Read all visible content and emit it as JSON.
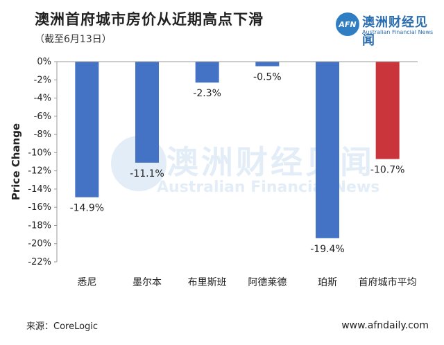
{
  "logo": {
    "mark": "AFN",
    "name_cn": "澳洲财经见闻",
    "name_en": "Australian Financial News"
  },
  "source": "来源：CoreLogic",
  "site": "www.afndaily.com",
  "colors": {
    "bar_default": "#4472c4",
    "bar_highlight": "#c9353a",
    "accent": "#2f7ec3"
  },
  "chart_data": {
    "type": "bar",
    "title": "澳洲首府城市房价从近期高点下滑",
    "subtitle": "（截至6月13日）",
    "ylabel": "Price Change",
    "xlabel": "",
    "ylim": [
      -22,
      0
    ],
    "yticks": [
      "0%",
      "-2%",
      "-4%",
      "-6%",
      "-8%",
      "-10%",
      "-12%",
      "-14%",
      "-16%",
      "-18%",
      "-20%",
      "-22%"
    ],
    "categories": [
      "悉尼",
      "墨尔本",
      "布里斯班",
      "阿德莱德",
      "珀斯",
      "首府城市平均"
    ],
    "values": [
      -14.9,
      -11.1,
      -2.3,
      -0.5,
      -19.4,
      -10.7
    ],
    "data_labels": [
      "-14.9%",
      "-11.1%",
      "-2.3%",
      "-0.5%",
      "-19.4%",
      "-10.7%"
    ],
    "highlight_index": 5,
    "grid": false,
    "legend": "none"
  }
}
